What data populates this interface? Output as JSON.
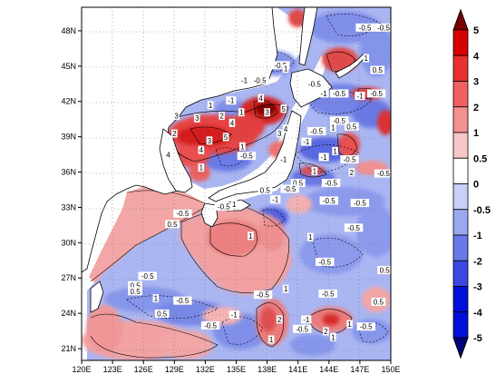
{
  "map": {
    "lon_labels": [
      "120E",
      "123E",
      "126E",
      "129E",
      "132E",
      "135E",
      "138E",
      "141E",
      "144E",
      "147E",
      "150E"
    ],
    "lat_labels": [
      "21N",
      "24N",
      "27N",
      "30N",
      "33N",
      "36N",
      "39N",
      "42N",
      "45N",
      "48N"
    ],
    "lon_range": [
      120,
      150
    ],
    "lat_range": [
      20,
      50
    ],
    "contour_labels": [
      {
        "text": "-0.5",
        "lon": 147.5,
        "lat": 48.2
      },
      {
        "text": "-0.5",
        "lon": 149.3,
        "lat": 48.2
      },
      {
        "text": "-0.5",
        "lon": 139.3,
        "lat": 45.0
      },
      {
        "text": "1",
        "lon": 139.8,
        "lat": 44.7
      },
      {
        "text": "-1",
        "lon": 135.8,
        "lat": 43.7
      },
      {
        "text": "-0.5",
        "lon": 137.3,
        "lat": 43.7
      },
      {
        "text": "1",
        "lon": 147.6,
        "lat": 45.6
      },
      {
        "text": "0.5",
        "lon": 148.7,
        "lat": 44.6
      },
      {
        "text": "-0.5",
        "lon": 142.6,
        "lat": 43.4
      },
      {
        "text": "-1",
        "lon": 143.5,
        "lat": 42.6
      },
      {
        "text": "-0.5",
        "lon": 145.0,
        "lat": 42.6
      },
      {
        "text": "-1",
        "lon": 147.0,
        "lat": 42.4
      },
      {
        "text": "-0.5",
        "lon": 148.6,
        "lat": 42.6
      },
      {
        "text": "4",
        "lon": 137.4,
        "lat": 42.2
      },
      {
        "text": "3",
        "lon": 138.0,
        "lat": 41.0
      },
      {
        "text": "1",
        "lon": 132.5,
        "lat": 41.6
      },
      {
        "text": "-1",
        "lon": 134.5,
        "lat": 42.0
      },
      {
        "text": "3",
        "lon": 129.2,
        "lat": 40.7
      },
      {
        "text": "3",
        "lon": 131.2,
        "lat": 40.5
      },
      {
        "text": "2",
        "lon": 133.6,
        "lat": 40.7
      },
      {
        "text": "1",
        "lon": 135.5,
        "lat": 41.0
      },
      {
        "text": "4",
        "lon": 134.6,
        "lat": 40.1
      },
      {
        "text": "5",
        "lon": 139.6,
        "lat": 41.3
      },
      {
        "text": "4",
        "lon": 139.8,
        "lat": 39.6
      },
      {
        "text": "3",
        "lon": 139.2,
        "lat": 39.2
      },
      {
        "text": "-0.5",
        "lon": 145.0,
        "lat": 40.3
      },
      {
        "text": "1",
        "lon": 144.4,
        "lat": 39.7
      },
      {
        "text": "-0.5",
        "lon": 142.8,
        "lat": 39.4
      },
      {
        "text": "0.5",
        "lon": 146.2,
        "lat": 39.8
      },
      {
        "text": "-1",
        "lon": 141.8,
        "lat": 38.5
      },
      {
        "text": "2",
        "lon": 129.0,
        "lat": 39.2
      },
      {
        "text": "3",
        "lon": 132.4,
        "lat": 38.6
      },
      {
        "text": "5",
        "lon": 134.0,
        "lat": 38.9
      },
      {
        "text": "4",
        "lon": 131.6,
        "lat": 37.8
      },
      {
        "text": "1",
        "lon": 135.6,
        "lat": 38.1
      },
      {
        "text": "4",
        "lon": 128.4,
        "lat": 37.4
      },
      {
        "text": "-0.5",
        "lon": 136.0,
        "lat": 37.3
      },
      {
        "text": "-1",
        "lon": 143.5,
        "lat": 37.2
      },
      {
        "text": "1",
        "lon": 144.6,
        "lat": 37.7
      },
      {
        "text": "-0.5",
        "lon": 146.0,
        "lat": 37.0
      },
      {
        "text": "-1",
        "lon": 139.6,
        "lat": 37.0
      },
      {
        "text": "1",
        "lon": 131.6,
        "lat": 36.3
      },
      {
        "text": "1",
        "lon": 142.6,
        "lat": 36.0
      },
      {
        "text": "2",
        "lon": 146.2,
        "lat": 35.9
      },
      {
        "text": "-0.5",
        "lon": 144.2,
        "lat": 35.0
      },
      {
        "text": "-0.5",
        "lon": 149.3,
        "lat": 35.8
      },
      {
        "text": "0.5",
        "lon": 141.0,
        "lat": 35.0
      },
      {
        "text": "-0.5",
        "lon": 140.2,
        "lat": 34.5
      },
      {
        "text": "0.5",
        "lon": 137.8,
        "lat": 34.4
      },
      {
        "text": "-0.5",
        "lon": 144.0,
        "lat": 33.5
      },
      {
        "text": "-0.5",
        "lon": 147.0,
        "lat": 33.3
      },
      {
        "text": "-0.5",
        "lon": 133.8,
        "lat": 33.0
      },
      {
        "text": "1",
        "lon": 134.8,
        "lat": 33.2
      },
      {
        "text": "-1",
        "lon": 138.8,
        "lat": 33.6
      },
      {
        "text": "-0.5",
        "lon": 129.8,
        "lat": 32.4
      },
      {
        "text": "-0.5",
        "lon": 146.4,
        "lat": 31.2
      },
      {
        "text": "0.5",
        "lon": 128.8,
        "lat": 31.5
      },
      {
        "text": "1",
        "lon": 136.4,
        "lat": 30.5
      },
      {
        "text": "1",
        "lon": 142.2,
        "lat": 30.4
      },
      {
        "text": "-0.5",
        "lon": 143.6,
        "lat": 28.3
      },
      {
        "text": "0.5",
        "lon": 149.4,
        "lat": 27.6
      },
      {
        "text": "-0.5",
        "lon": 126.4,
        "lat": 27.1
      },
      {
        "text": "0.5",
        "lon": 125.2,
        "lat": 26.3
      },
      {
        "text": "1",
        "lon": 139.8,
        "lat": 26.0
      },
      {
        "text": "-0.5",
        "lon": 143.9,
        "lat": 25.6
      },
      {
        "text": "-0.5",
        "lon": 137.6,
        "lat": 25.5
      },
      {
        "text": "0.5",
        "lon": 125.2,
        "lat": 25.8
      },
      {
        "text": "1",
        "lon": 127.2,
        "lat": 25.2
      },
      {
        "text": "-0.5",
        "lon": 129.8,
        "lat": 25.0
      },
      {
        "text": "0.5",
        "lon": 148.8,
        "lat": 24.9
      },
      {
        "text": "-1",
        "lon": 134.8,
        "lat": 23.8
      },
      {
        "text": "-1",
        "lon": 141.8,
        "lat": 23.4
      },
      {
        "text": "2",
        "lon": 139.2,
        "lat": 23.4
      },
      {
        "text": "0.5",
        "lon": 127.8,
        "lat": 23.9
      },
      {
        "text": "-0.5",
        "lon": 132.5,
        "lat": 22.9
      },
      {
        "text": "-0.5",
        "lon": 141.4,
        "lat": 22.6
      },
      {
        "text": "1",
        "lon": 146.0,
        "lat": 23.0
      },
      {
        "text": "-0.5",
        "lon": 147.6,
        "lat": 22.8
      },
      {
        "text": "1",
        "lon": 138.4,
        "lat": 21.7
      },
      {
        "text": "2",
        "lon": 143.7,
        "lat": 22.4
      },
      {
        "text": "1",
        "lon": 144.4,
        "lat": 21.9
      }
    ]
  },
  "colorbar": {
    "labels": [
      "5",
      "4",
      "3",
      "2",
      "1",
      "0.5",
      "0",
      "-0.5",
      "-1",
      "-2",
      "-3",
      "-4",
      "-5"
    ],
    "colors": [
      "#7a0000",
      "#d70000",
      "#e83030",
      "#f06060",
      "#f39090",
      "#f8c8c8",
      "#ffffff",
      "#c8d0f8",
      "#9aa8f0",
      "#6a78e8",
      "#3848e0",
      "#0010d8",
      "#00007a"
    ]
  }
}
